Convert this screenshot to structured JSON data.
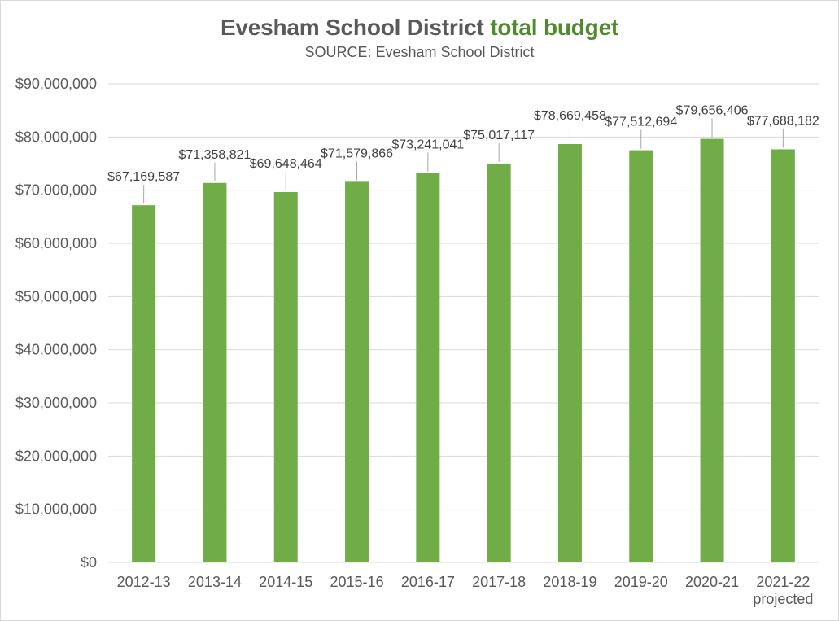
{
  "chart_data": {
    "type": "bar",
    "title_main": "Evesham School District",
    "title_accent": "total budget",
    "subtitle": "SOURCE: Evesham School District",
    "categories": [
      [
        "2012-13"
      ],
      [
        "2013-14"
      ],
      [
        "2014-15"
      ],
      [
        "2015-16"
      ],
      [
        "2016-17"
      ],
      [
        "2017-18"
      ],
      [
        "2018-19"
      ],
      [
        "2019-20"
      ],
      [
        "2020-21"
      ],
      [
        "2021-22",
        "projected"
      ]
    ],
    "values": [
      67169587,
      71358821,
      69648464,
      71579866,
      73241041,
      75017117,
      78669458,
      77512694,
      79656406,
      77688182
    ],
    "data_labels": [
      "$67,169,587",
      "$71,358,821",
      "$69,648,464",
      "$71,579,866",
      "$73,241,041",
      "$75,017,117",
      "$78,669,458",
      "$77,512,694",
      "$79,656,406",
      "$77,688,182"
    ],
    "yticks": [
      "$0",
      "$10,000,000",
      "$20,000,000",
      "$30,000,000",
      "$40,000,000",
      "$50,000,000",
      "$60,000,000",
      "$70,000,000",
      "$80,000,000",
      "$90,000,000"
    ],
    "ylim": [
      0,
      90000000
    ],
    "ystep": 10000000,
    "grid": true,
    "legend": "none",
    "colors": {
      "bar": "#70ad47",
      "title_accent": "#4f8a2c",
      "text": "#595959",
      "grid": "#d9d9d9"
    }
  }
}
